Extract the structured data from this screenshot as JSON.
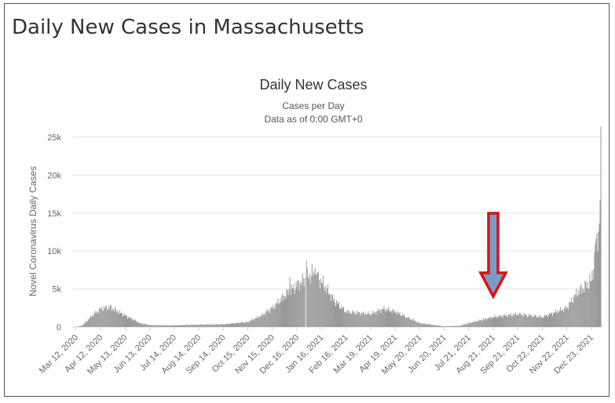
{
  "page": {
    "title": "Daily New Cases in Massachusetts"
  },
  "chart_data": {
    "type": "bar",
    "title": "Daily New Cases",
    "subtitles": [
      "Cases per Day",
      "Data as of 0:00 GMT+0"
    ],
    "ylabel": "Novel Coronavirus Daily Cases",
    "xlabel": "",
    "ylim": [
      0,
      25000
    ],
    "yticks": [
      {
        "value": 0,
        "label": "0"
      },
      {
        "value": 5000,
        "label": "5k"
      },
      {
        "value": 10000,
        "label": "10k"
      },
      {
        "value": 15000,
        "label": "15k"
      },
      {
        "value": 20000,
        "label": "20k"
      },
      {
        "value": 25000,
        "label": "25k"
      }
    ],
    "grid": true,
    "legend": "none",
    "x_tick_labels": [
      "Mar 12, 2020",
      "Apr 12, 2020",
      "May 13, 2020",
      "Jun 13, 2020",
      "Jul 14, 2020",
      "Aug 14, 2020",
      "Sep 14, 2020",
      "Oct 15, 2020",
      "Nov 15, 2020",
      "Dec 16, 2020",
      "Jan 16, 2021",
      "Feb 16, 2021",
      "Mar 19, 2021",
      "Apr 19, 2021",
      "May 20, 2021",
      "Jun 20, 2021",
      "Jul 21, 2021",
      "Aug 21, 2021",
      "Sep 21, 2021",
      "Oct 22, 2021",
      "Nov 22, 2021",
      "Dec 23, 2021"
    ],
    "series_keypoints": [
      {
        "date": "Mar 12, 2020",
        "value": 0
      },
      {
        "date": "Mar 20, 2020",
        "value": 200
      },
      {
        "date": "Apr 1, 2020",
        "value": 1500
      },
      {
        "date": "Apr 12, 2020",
        "value": 2400
      },
      {
        "date": "Apr 24, 2020",
        "value": 2600
      },
      {
        "date": "May 13, 2020",
        "value": 1500
      },
      {
        "date": "Jun 1, 2020",
        "value": 500
      },
      {
        "date": "Jun 13, 2020",
        "value": 250
      },
      {
        "date": "Jul 14, 2020",
        "value": 200
      },
      {
        "date": "Aug 14, 2020",
        "value": 300
      },
      {
        "date": "Sep 14, 2020",
        "value": 350
      },
      {
        "date": "Oct 15, 2020",
        "value": 650
      },
      {
        "date": "Nov 1, 2020",
        "value": 1500
      },
      {
        "date": "Nov 15, 2020",
        "value": 2500
      },
      {
        "date": "Dec 1, 2020",
        "value": 4200
      },
      {
        "date": "Dec 16, 2020",
        "value": 5500
      },
      {
        "date": "Jan 5, 2021",
        "value": 7000
      },
      {
        "date": "Jan 16, 2021",
        "value": 6000
      },
      {
        "date": "Feb 1, 2021",
        "value": 3500
      },
      {
        "date": "Feb 16, 2021",
        "value": 2000
      },
      {
        "date": "Mar 19, 2021",
        "value": 1700
      },
      {
        "date": "Apr 5, 2021",
        "value": 2400
      },
      {
        "date": "Apr 19, 2021",
        "value": 2000
      },
      {
        "date": "May 20, 2021",
        "value": 500
      },
      {
        "date": "Jun 20, 2021",
        "value": 80
      },
      {
        "date": "Jul 10, 2021",
        "value": 150
      },
      {
        "date": "Jul 21, 2021",
        "value": 500
      },
      {
        "date": "Aug 21, 2021",
        "value": 1300
      },
      {
        "date": "Sep 21, 2021",
        "value": 1700
      },
      {
        "date": "Oct 22, 2021",
        "value": 1300
      },
      {
        "date": "Nov 22, 2021",
        "value": 2500
      },
      {
        "date": "Dec 5, 2021",
        "value": 4500
      },
      {
        "date": "Dec 23, 2021",
        "value": 6000
      },
      {
        "date": "Dec 29, 2021",
        "value": 10500
      },
      {
        "date": "Jan 2, 2022",
        "value": 13500
      },
      {
        "date": "Jan 4, 2022",
        "value": 22500
      }
    ],
    "spikes": [
      {
        "date": "Dec 7, 2020",
        "value": 6600
      },
      {
        "date": "Dec 28, 2020",
        "value": 8700
      },
      {
        "date": "Jan 4, 2021",
        "value": 8300
      },
      {
        "date": "Jan 8, 2021",
        "value": 7800
      },
      {
        "date": "Jan 11, 2021",
        "value": 7200
      },
      {
        "date": "Dec 21, 2021",
        "value": 7000
      },
      {
        "date": "Dec 28, 2021",
        "value": 11000
      }
    ],
    "dips": [
      {
        "date": "Dec 27, 2020",
        "value": 0
      }
    ],
    "annotation": {
      "type": "arrow",
      "direction": "down",
      "date": "Aug 21, 2021",
      "fill_color": "#7a9cc6",
      "stroke_color": "#dd1111"
    },
    "colors": {
      "bar": "#999999",
      "grid": "#e6e6e6",
      "axis": "#ccd6eb"
    }
  }
}
